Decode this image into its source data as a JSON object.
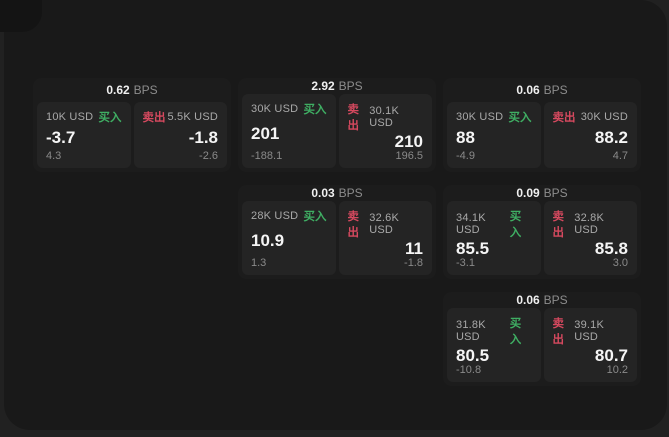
{
  "page": {
    "bg": "#212121",
    "panel_bg": "#191919"
  },
  "colors": {
    "buy": "#3fae63",
    "sell": "#d6495f"
  },
  "labels": {
    "buy": "买入",
    "sell": "卖出",
    "bps": "BPS"
  },
  "cards": [
    {
      "row": 1,
      "col": 1,
      "bps": "0.62",
      "buy": {
        "amount": "10K USD",
        "price": "-3.7",
        "delta": "4.3"
      },
      "sell": {
        "amount": "5.5K USD",
        "price": "-1.8",
        "delta": "-2.6"
      }
    },
    {
      "row": 1,
      "col": 2,
      "bps": "2.92",
      "buy": {
        "amount": "30K USD",
        "price": "201",
        "delta": "-188.1"
      },
      "sell": {
        "amount": "30.1K USD",
        "price": "210",
        "delta": "196.5"
      }
    },
    {
      "row": 1,
      "col": 3,
      "bps": "0.06",
      "buy": {
        "amount": "30K USD",
        "price": "88",
        "delta": "-4.9"
      },
      "sell": {
        "amount": "30K USD",
        "price": "88.2",
        "delta": "4.7"
      }
    },
    {
      "row": 2,
      "col": 2,
      "bps": "0.03",
      "buy": {
        "amount": "28K USD",
        "price": "10.9",
        "delta": "1.3"
      },
      "sell": {
        "amount": "32.6K USD",
        "price": "11",
        "delta": "-1.8"
      }
    },
    {
      "row": 2,
      "col": 3,
      "bps": "0.09",
      "buy": {
        "amount": "34.1K USD",
        "price": "85.5",
        "delta": "-3.1"
      },
      "sell": {
        "amount": "32.8K USD",
        "price": "85.8",
        "delta": "3.0"
      }
    },
    {
      "row": 3,
      "col": 3,
      "bps": "0.06",
      "buy": {
        "amount": "31.8K USD",
        "price": "80.5",
        "delta": "-10.8"
      },
      "sell": {
        "amount": "39.1K USD",
        "price": "80.7",
        "delta": "10.2"
      }
    }
  ]
}
